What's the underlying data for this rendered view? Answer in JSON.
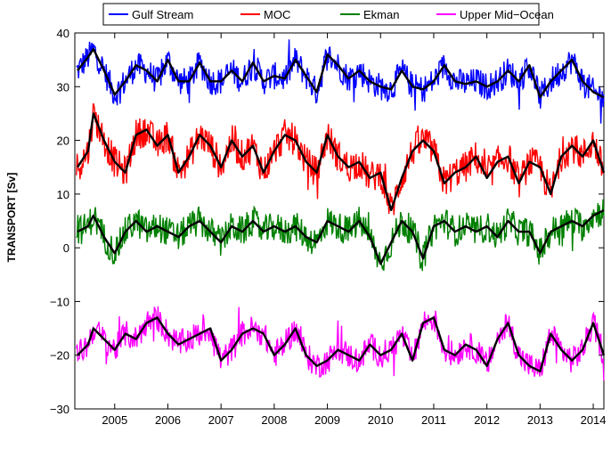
{
  "chart_data": {
    "type": "line",
    "title": "",
    "xlabel": "",
    "ylabel": "TRANSPORT [Sv]",
    "xlim": [
      2004.25,
      2014.2
    ],
    "ylim": [
      -30,
      40
    ],
    "x_ticks": [
      "2005",
      "2006",
      "2007",
      "2008",
      "2009",
      "2010",
      "2011",
      "2012",
      "2013",
      "2014"
    ],
    "y_ticks": [
      "40",
      "30",
      "20",
      "10",
      "0",
      "−10",
      "−20",
      "−30"
    ],
    "grid": false,
    "legend_position": "top-center",
    "series": [
      {
        "name": "Gulf Stream",
        "color": "#0000ff",
        "smooth_color": "#000000",
        "x": [
          2004.3,
          2004.5,
          2004.6,
          2004.8,
          2005.0,
          2005.2,
          2005.4,
          2005.6,
          2005.8,
          2006.0,
          2006.2,
          2006.4,
          2006.6,
          2006.8,
          2007.0,
          2007.2,
          2007.4,
          2007.6,
          2007.8,
          2008.0,
          2008.2,
          2008.4,
          2008.6,
          2008.8,
          2009.0,
          2009.2,
          2009.4,
          2009.6,
          2009.8,
          2010.0,
          2010.2,
          2010.4,
          2010.6,
          2010.8,
          2011.0,
          2011.2,
          2011.4,
          2011.6,
          2011.8,
          2012.0,
          2012.2,
          2012.4,
          2012.6,
          2012.8,
          2013.0,
          2013.2,
          2013.4,
          2013.6,
          2013.8,
          2014.0,
          2014.2
        ],
        "y": [
          33,
          35.5,
          37,
          33,
          28.5,
          31,
          34,
          33,
          31,
          35,
          31,
          31,
          34.5,
          31,
          31,
          33,
          31,
          34.5,
          31,
          32,
          31.5,
          35,
          32,
          29,
          36,
          34,
          31.5,
          33,
          31,
          30,
          29.5,
          33,
          30,
          29.5,
          31,
          34,
          31,
          30.5,
          31,
          30,
          31,
          33,
          31,
          34,
          28,
          31,
          33,
          35,
          31,
          29,
          28
        ]
      },
      {
        "name": "MOC",
        "color": "#ff0000",
        "smooth_color": "#000000",
        "x": [
          2004.3,
          2004.5,
          2004.6,
          2004.8,
          2005.0,
          2005.2,
          2005.4,
          2005.6,
          2005.8,
          2006.0,
          2006.2,
          2006.4,
          2006.6,
          2006.8,
          2007.0,
          2007.2,
          2007.4,
          2007.6,
          2007.8,
          2008.0,
          2008.2,
          2008.4,
          2008.6,
          2008.8,
          2009.0,
          2009.2,
          2009.4,
          2009.6,
          2009.8,
          2010.0,
          2010.2,
          2010.4,
          2010.6,
          2010.8,
          2011.0,
          2011.2,
          2011.4,
          2011.6,
          2011.8,
          2012.0,
          2012.2,
          2012.4,
          2012.6,
          2012.8,
          2013.0,
          2013.2,
          2013.4,
          2013.6,
          2013.8,
          2014.0,
          2014.2
        ],
        "y": [
          15,
          18,
          25,
          20,
          16,
          14,
          21,
          22,
          19,
          21,
          14,
          17,
          21,
          19,
          15,
          20,
          17,
          19,
          14,
          18,
          21,
          20,
          16,
          14,
          21,
          17,
          15,
          16,
          13,
          14,
          7,
          13,
          18,
          20,
          18,
          12,
          14,
          15,
          17,
          13,
          16,
          17,
          12,
          16,
          15,
          10,
          17,
          19,
          17,
          20,
          14
        ]
      },
      {
        "name": "Ekman",
        "color": "#008000",
        "smooth_color": "#000000",
        "x": [
          2004.3,
          2004.5,
          2004.6,
          2004.8,
          2005.0,
          2005.2,
          2005.4,
          2005.6,
          2005.8,
          2006.0,
          2006.2,
          2006.4,
          2006.6,
          2006.8,
          2007.0,
          2007.2,
          2007.4,
          2007.6,
          2007.8,
          2008.0,
          2008.2,
          2008.4,
          2008.6,
          2008.8,
          2009.0,
          2009.2,
          2009.4,
          2009.6,
          2009.8,
          2010.0,
          2010.2,
          2010.4,
          2010.6,
          2010.8,
          2011.0,
          2011.2,
          2011.4,
          2011.6,
          2011.8,
          2012.0,
          2012.2,
          2012.4,
          2012.6,
          2012.8,
          2013.0,
          2013.2,
          2013.4,
          2013.6,
          2013.8,
          2014.0,
          2014.2
        ],
        "y": [
          3,
          4,
          6,
          2,
          -1,
          3,
          5,
          3,
          4,
          3,
          2,
          4,
          5,
          3,
          1,
          4,
          3,
          5,
          3,
          4,
          3,
          4,
          2,
          1,
          5,
          4,
          3,
          5,
          2,
          -3,
          1,
          5,
          3,
          -2,
          4,
          5,
          3,
          4,
          3,
          4,
          2,
          5,
          3,
          3,
          -1,
          3,
          4,
          5,
          4,
          6,
          7
        ]
      },
      {
        "name": "Upper Mid−Ocean",
        "color": "#ff00ff",
        "smooth_color": "#000000",
        "x": [
          2004.3,
          2004.5,
          2004.6,
          2004.8,
          2005.0,
          2005.2,
          2005.4,
          2005.6,
          2005.8,
          2006.0,
          2006.2,
          2006.4,
          2006.6,
          2006.8,
          2007.0,
          2007.2,
          2007.4,
          2007.6,
          2007.8,
          2008.0,
          2008.2,
          2008.4,
          2008.6,
          2008.8,
          2009.0,
          2009.2,
          2009.4,
          2009.6,
          2009.8,
          2010.0,
          2010.2,
          2010.4,
          2010.6,
          2010.8,
          2011.0,
          2011.2,
          2011.4,
          2011.6,
          2011.8,
          2012.0,
          2012.2,
          2012.4,
          2012.6,
          2012.8,
          2013.0,
          2013.2,
          2013.4,
          2013.6,
          2013.8,
          2014.0,
          2014.2
        ],
        "y": [
          -20,
          -18,
          -15,
          -17,
          -19,
          -16,
          -17,
          -14,
          -13,
          -16,
          -18,
          -17,
          -16,
          -15,
          -21,
          -19,
          -16,
          -15,
          -16,
          -20,
          -18,
          -15,
          -20,
          -22,
          -21,
          -19,
          -20,
          -21,
          -18,
          -20,
          -19,
          -16,
          -21,
          -14,
          -13,
          -19,
          -20,
          -18,
          -19,
          -22,
          -17,
          -14,
          -20,
          -22,
          -23,
          -16,
          -19,
          -21,
          -19,
          -14,
          -20
        ]
      }
    ]
  }
}
